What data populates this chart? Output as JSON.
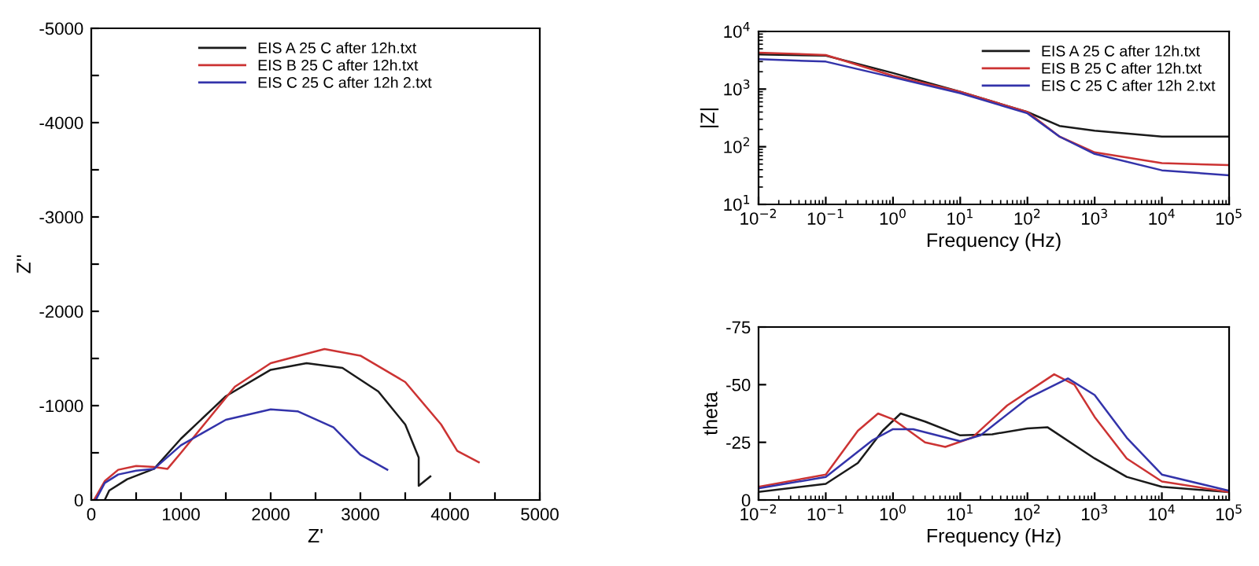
{
  "chart_data": [
    {
      "type": "line",
      "xlabel": "Z'",
      "ylabel": "Z''",
      "legend": "top",
      "grid": false,
      "marker": "none",
      "line_style": "solid",
      "xlim": [
        0,
        5000
      ],
      "ylim": [
        0,
        -5000
      ],
      "xticks": [
        0,
        {
          "value": 500,
          "label": null
        },
        1000,
        {
          "value": 1500,
          "label": null
        },
        2000,
        {
          "value": 2500,
          "label": null
        },
        3000,
        {
          "value": 3500,
          "label": null
        },
        4000,
        {
          "value": 4500,
          "label": null
        },
        5000
      ],
      "yticks": [
        0,
        {
          "value": -500,
          "label": null
        },
        -1000,
        {
          "value": -1500,
          "label": null
        },
        -2000,
        {
          "value": -2500,
          "label": null
        },
        -3000,
        {
          "value": -3500,
          "label": null
        },
        -4000,
        {
          "value": -4500,
          "label": null
        },
        -5000
      ],
      "series": [
        {
          "name": "EIS A 25 C after 12h.txt",
          "color": "#1a1a1a",
          "x": [
            150,
            200,
            400,
            700,
            1000,
            1500,
            2000,
            2400,
            2800,
            3200,
            3500,
            3650,
            3650,
            3780
          ],
          "values": [
            0,
            -100,
            -220,
            -330,
            -650,
            -1100,
            -1380,
            -1450,
            -1400,
            -1150,
            -800,
            -450,
            -150,
            -250
          ]
        },
        {
          "name": "EIS B 25 C after 12h.txt",
          "color": "#cc3333",
          "x": [
            30,
            150,
            300,
            500,
            700,
            850,
            1000,
            1300,
            1600,
            2000,
            2600,
            3000,
            3500,
            3900,
            4080,
            4320
          ],
          "values": [
            0,
            -200,
            -320,
            -360,
            -350,
            -330,
            -500,
            -850,
            -1200,
            -1450,
            -1600,
            -1530,
            -1250,
            -800,
            -520,
            -400
          ]
        },
        {
          "name": "EIS C 25 C after 12h 2.txt",
          "color": "#3333aa",
          "x": [
            50,
            150,
            300,
            500,
            700,
            1000,
            1500,
            2000,
            2300,
            2700,
            3000,
            3300
          ],
          "values": [
            0,
            -180,
            -270,
            -310,
            -330,
            -580,
            -850,
            -960,
            -940,
            -770,
            -480,
            -320
          ]
        }
      ]
    },
    {
      "type": "line",
      "xlabel": "Frequency (Hz)",
      "ylabel": "|Z|",
      "legend": "top right",
      "log": "xy",
      "grid": false,
      "marker": "none",
      "line_style": "solid",
      "xlim": [
        0.01,
        100000
      ],
      "ylim": [
        10,
        10000
      ],
      "xticks": [
        {
          "value": 0.01,
          "label": "10$^{−2}$"
        },
        {
          "value": 0.1,
          "label": "10$^{−1}$"
        },
        {
          "value": 1,
          "label": "10$^{0}$"
        },
        {
          "value": 10,
          "label": "10$^{1}$"
        },
        {
          "value": 100,
          "label": "10$^{2}$"
        },
        {
          "value": 1000,
          "label": "10$^{3}$"
        },
        {
          "value": 10000,
          "label": "10$^{4}$"
        },
        {
          "value": 100000,
          "label": "10$^{5}$"
        }
      ],
      "yticks": [
        {
          "value": 10,
          "label": "10$^{1}$"
        },
        {
          "value": 100,
          "label": "10$^{2}$"
        },
        {
          "value": 1000,
          "label": "10$^{3}$"
        },
        {
          "value": 10000,
          "label": "10$^{4}$"
        }
      ],
      "series": [
        {
          "name": "EIS A 25 C after 12h.txt",
          "color": "#1a1a1a",
          "x": [
            0.01,
            0.1,
            1,
            10,
            100,
            300,
            1000,
            10000,
            100000
          ],
          "values": [
            4000,
            3800,
            1900,
            900,
            400,
            230,
            190,
            150,
            150
          ]
        },
        {
          "name": "EIS B 25 C after 12h.txt",
          "color": "#cc3333",
          "x": [
            0.01,
            0.1,
            1,
            10,
            100,
            300,
            1000,
            10000,
            100000
          ],
          "values": [
            4300,
            3900,
            1700,
            900,
            400,
            150,
            80,
            52,
            48
          ]
        },
        {
          "name": "EIS C 25 C after 12h 2.txt",
          "color": "#3333aa",
          "x": [
            0.01,
            0.1,
            1,
            10,
            100,
            300,
            1000,
            10000,
            100000
          ],
          "values": [
            3300,
            3000,
            1600,
            850,
            380,
            150,
            75,
            39,
            32
          ]
        }
      ]
    },
    {
      "type": "line",
      "xlabel": "Frequency (Hz)",
      "ylabel": "theta",
      "log": "x",
      "grid": false,
      "marker": "none",
      "line_style": "solid",
      "xlim": [
        0.01,
        100000
      ],
      "ylim": [
        0,
        -75
      ],
      "xticks": [
        {
          "value": 0.01,
          "label": "10$^{−2}$"
        },
        {
          "value": 0.1,
          "label": "10$^{−1}$"
        },
        {
          "value": 1,
          "label": "10$^{0}$"
        },
        {
          "value": 10,
          "label": "10$^{1}$"
        },
        {
          "value": 100,
          "label": "10$^{2}$"
        },
        {
          "value": 1000,
          "label": "10$^{3}$"
        },
        {
          "value": 10000,
          "label": "10$^{4}$"
        },
        {
          "value": 100000,
          "label": "10$^{5}$"
        }
      ],
      "yticks": [
        0,
        -25,
        -50,
        -75
      ],
      "series": [
        {
          "color": "#1a1a1a",
          "x": [
            0.01,
            0.1,
            0.3,
            0.7,
            1.3,
            3,
            10,
            30,
            100,
            200,
            1000,
            3000,
            10000,
            100000
          ],
          "values": [
            -3.5,
            -7,
            -16,
            -30,
            -37.5,
            -34,
            -28,
            -28.5,
            -31,
            -31.5,
            -18,
            -10,
            -5.7,
            -3.4
          ]
        },
        {
          "color": "#cc3333",
          "x": [
            0.01,
            0.1,
            0.3,
            0.6,
            1,
            3,
            6,
            15,
            50,
            250,
            500,
            1000,
            3000,
            10000,
            100000
          ],
          "values": [
            -5.7,
            -11,
            -30,
            -37.5,
            -35,
            -25,
            -23,
            -27,
            -41,
            -54.5,
            -50,
            -36,
            -18,
            -8,
            -3.4
          ]
        },
        {
          "color": "#3333aa",
          "x": [
            0.01,
            0.1,
            0.5,
            1,
            2,
            10,
            20,
            100,
            400,
            1000,
            3000,
            10000,
            100000
          ],
          "values": [
            -5,
            -10,
            -26,
            -30.7,
            -30.7,
            -25.5,
            -28,
            -44,
            -52.7,
            -45.5,
            -27,
            -11,
            -4
          ]
        }
      ]
    }
  ]
}
